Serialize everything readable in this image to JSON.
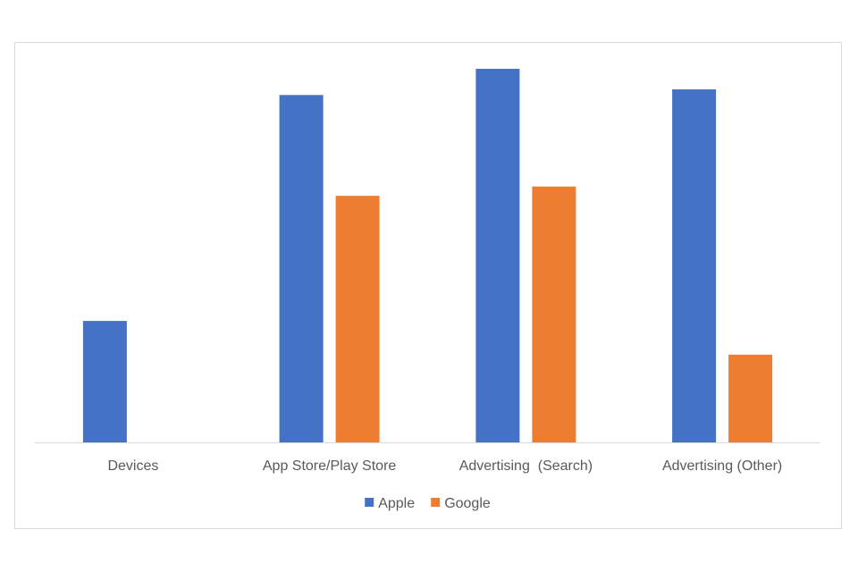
{
  "chart_data": {
    "type": "bar",
    "title": "",
    "xlabel": "",
    "ylabel": "",
    "categories": [
      "Devices",
      "App Store/Play Store",
      "Advertising  (Search)",
      "Advertising (Other)"
    ],
    "series": [
      {
        "name": "Apple",
        "color": "#4472C4",
        "values": [
          0.325,
          0.93,
          1.0,
          0.945
        ]
      },
      {
        "name": "Google",
        "color": "#ED7D31",
        "values": [
          null,
          0.66,
          0.685,
          0.235
        ]
      }
    ],
    "ylim": [
      0,
      1.0
    ],
    "grid": false,
    "axis_line_color": "#d9d9d9",
    "legend_position": "bottom"
  }
}
